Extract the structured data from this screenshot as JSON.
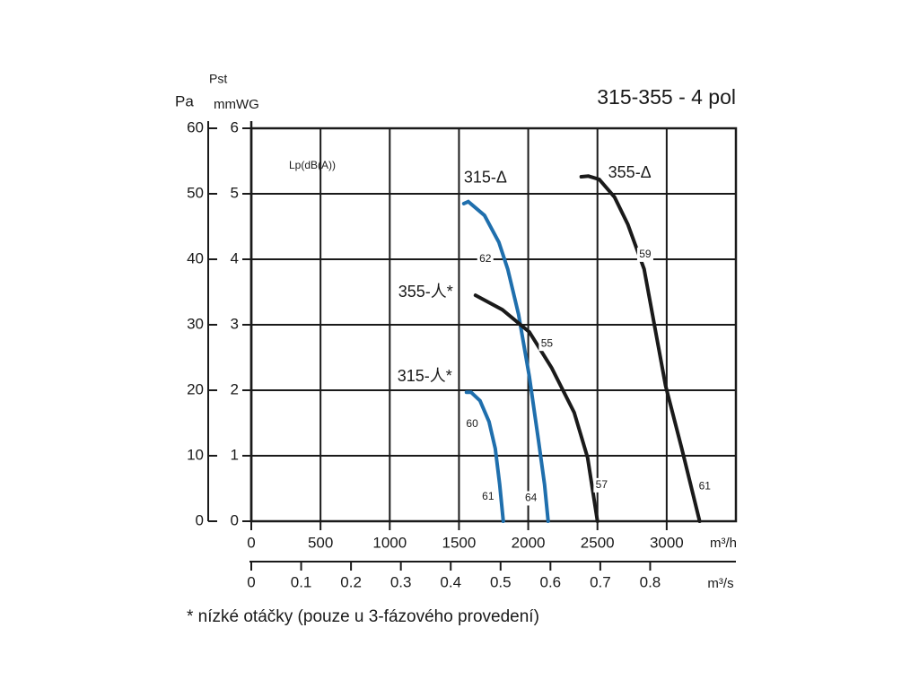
{
  "chart_data": {
    "type": "line",
    "title": "315-355 - 4 pol",
    "ylabel": "mmWG",
    "ylabel_symbol": "Pst",
    "y2label": "Pa",
    "xlabel": "m³/h",
    "x2label": "m³/s",
    "annotation": "Lp(dB(A))",
    "footnote": "* nízké otáčky (pouze u 3-fázového provedení)",
    "xlim": [
      0,
      3500
    ],
    "xticks": [
      0,
      500,
      1000,
      1500,
      2000,
      2500,
      3000
    ],
    "x2lim": [
      0,
      0.972
    ],
    "x2ticks": [
      0,
      0.1,
      0.2,
      0.3,
      0.4,
      0.5,
      0.6,
      0.7,
      0.8
    ],
    "ylim": [
      0,
      6
    ],
    "yticks": [
      0,
      1,
      2,
      3,
      4,
      5,
      6
    ],
    "y2lim": [
      0,
      60
    ],
    "y2ticks": [
      0,
      10,
      20,
      30,
      40,
      50,
      60
    ],
    "grid": true,
    "series": [
      {
        "name": "315-Δ",
        "color": "#1f6fad",
        "x": [
          1535,
          1567,
          1684,
          1788,
          1852,
          1930,
          2008,
          2073,
          2118,
          2144
        ],
        "values": [
          4.85,
          4.88,
          4.67,
          4.26,
          3.85,
          3.16,
          2.21,
          1.25,
          0.56,
          0
        ],
        "sound_levels": [
          {
            "x": 1690,
            "y": 4.0,
            "value": 62
          },
          {
            "x": 2020,
            "y": 0.35,
            "value": 64
          }
        ]
      },
      {
        "name": "315-人*",
        "color": "#1f6fad",
        "x": [
          1554,
          1587,
          1652,
          1717,
          1762,
          1794,
          1820
        ],
        "values": [
          1.97,
          1.97,
          1.84,
          1.52,
          1.11,
          0.56,
          0
        ],
        "sound_levels": [
          {
            "x": 1595,
            "y": 1.48,
            "value": 60
          },
          {
            "x": 1710,
            "y": 0.37,
            "value": 61
          }
        ]
      },
      {
        "name": "355-Δ",
        "color": "#1a1a1a",
        "x": [
          2383,
          2435,
          2513,
          2623,
          2720,
          2837,
          2992,
          3109,
          3238
        ],
        "values": [
          5.26,
          5.27,
          5.22,
          4.95,
          4.53,
          3.85,
          2.07,
          1.11,
          0
        ],
        "sound_levels": [
          {
            "x": 2845,
            "y": 4.07,
            "value": 59
          },
          {
            "x": 3275,
            "y": 0.53,
            "value": 61
          }
        ]
      },
      {
        "name": "355-人*",
        "color": "#1a1a1a",
        "x": [
          1619,
          1813,
          2008,
          2170,
          2332,
          2429,
          2500
        ],
        "values": [
          3.45,
          3.23,
          2.89,
          2.34,
          1.66,
          0.97,
          0
        ],
        "sound_levels": [
          {
            "x": 2135,
            "y": 2.71,
            "value": 55
          },
          {
            "x": 2530,
            "y": 0.55,
            "value": 57
          }
        ]
      }
    ]
  }
}
